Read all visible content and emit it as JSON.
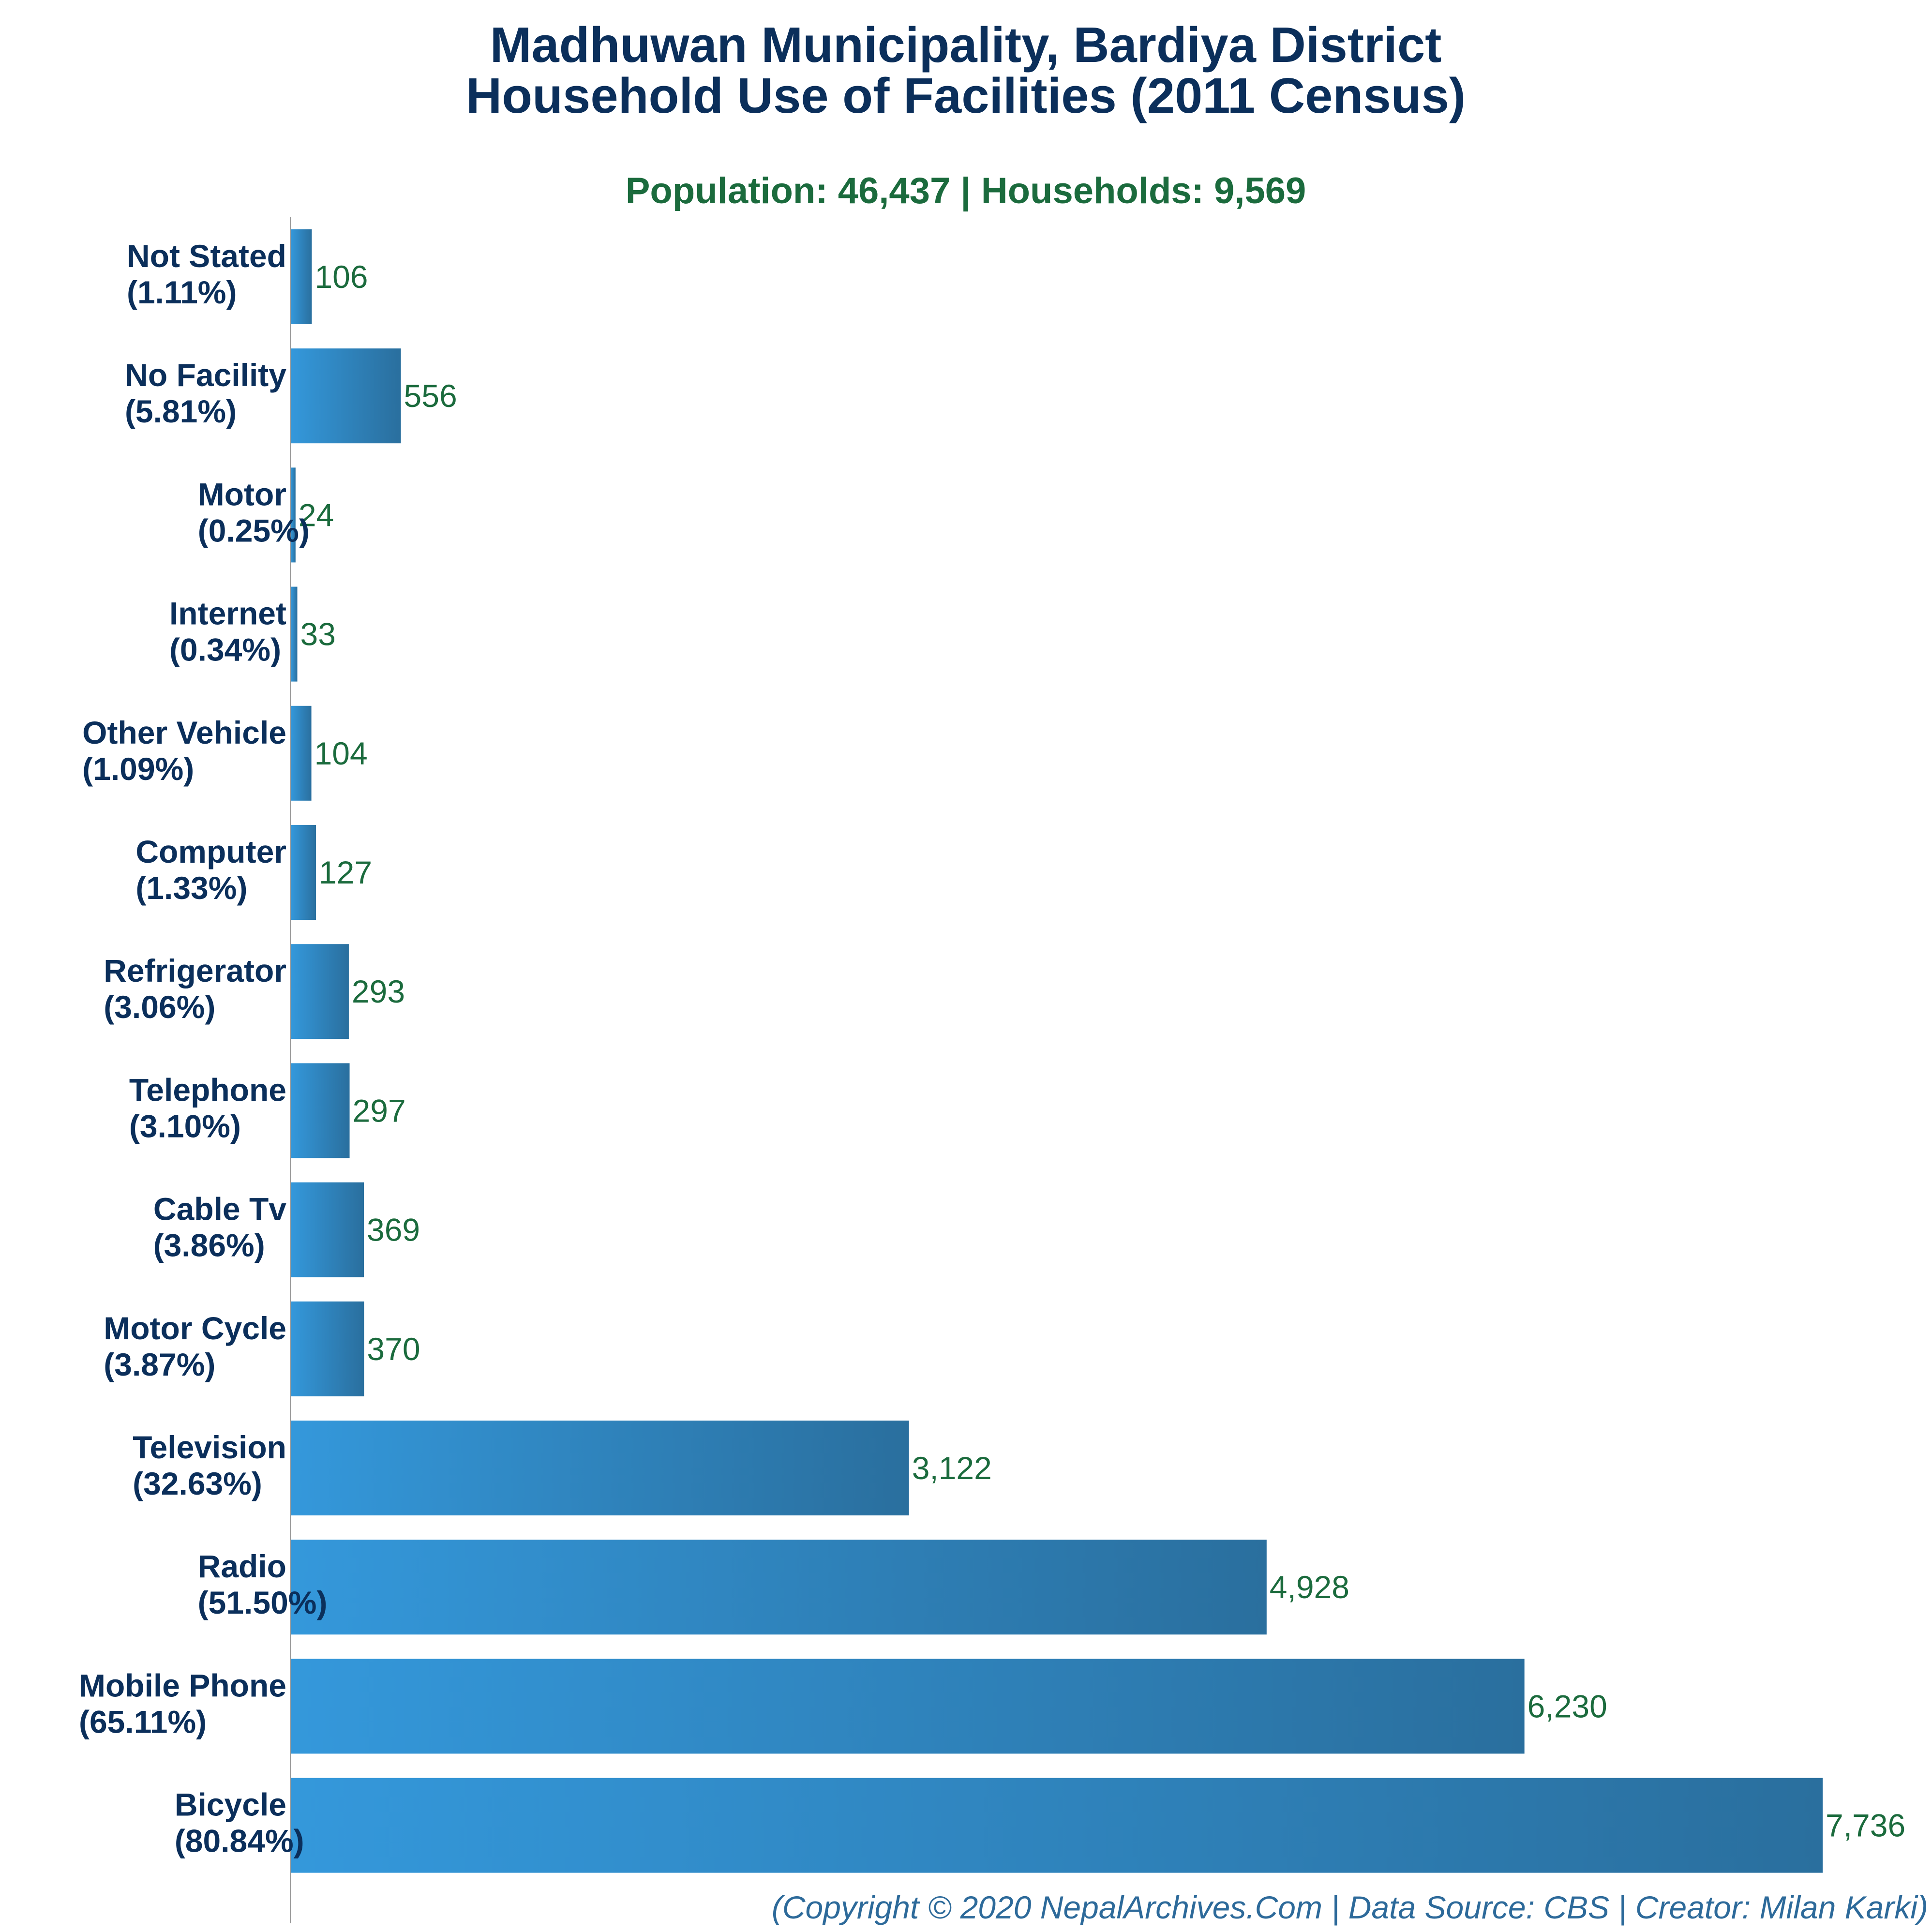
{
  "title_line1": "Madhuwan Municipality, Bardiya District",
  "title_line2": "Household Use of Facilities (2011 Census)",
  "subtitle": "Population: 46,437 | Households: 9,569",
  "footer": "(Copyright © 2020 NepalArchives.Com | Data Source: CBS | Creator: Milan Karki)",
  "colors": {
    "bar_light": "#3498db",
    "bar_dark": "#2a6f9e",
    "title": "#0b2f5b",
    "value": "#1b6b3d"
  },
  "chart_data": {
    "type": "bar",
    "orientation": "horizontal",
    "categories": [
      "Not Stated",
      "No Facility",
      "Motor",
      "Internet",
      "Other Vehicle",
      "Computer",
      "Refrigerator",
      "Telephone",
      "Cable Tv",
      "Motor Cycle",
      "Television",
      "Radio",
      "Mobile Phone",
      "Bicycle"
    ],
    "percent_labels": [
      "(1.11%)",
      "(5.81%)",
      "(0.25%)",
      "(0.34%)",
      "(1.09%)",
      "(1.33%)",
      "(3.06%)",
      "(3.10%)",
      "(3.86%)",
      "(3.87%)",
      "(32.63%)",
      "(51.50%)",
      "(65.11%)",
      "(80.84%)"
    ],
    "values": [
      106,
      556,
      24,
      33,
      104,
      127,
      293,
      297,
      369,
      370,
      3122,
      4928,
      6230,
      7736
    ],
    "value_labels": [
      "106",
      "556",
      "24",
      "33",
      "104",
      "127",
      "293",
      "297",
      "369",
      "370",
      "3,122",
      "4,928",
      "6,230",
      "7,736"
    ],
    "xlim": [
      0,
      7736
    ],
    "grid": false,
    "legend": "none"
  }
}
